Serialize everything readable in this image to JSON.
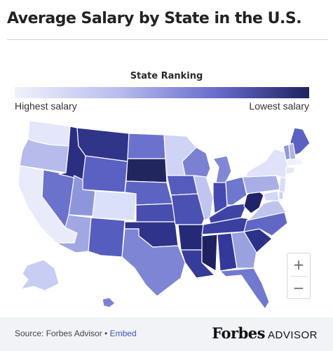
{
  "title": "Average Salary by State in the U.S.",
  "legend": {
    "title": "State Ranking",
    "low_label": "Highest salary",
    "high_label": "Lowest salary",
    "colors": [
      "#f0f1fc",
      "#b9bdee",
      "#6468c9",
      "#1f225e"
    ]
  },
  "map": {
    "states": [
      {
        "code": "WA",
        "rank": 2,
        "color": "#e4e7fa"
      },
      {
        "code": "OR",
        "rank": 14,
        "color": "#b6bbec"
      },
      {
        "code": "CA",
        "rank": 3,
        "color": "#e9ebfb"
      },
      {
        "code": "NV",
        "rank": 31,
        "color": "#6a72cc"
      },
      {
        "code": "ID",
        "rank": 46,
        "color": "#2a2f82"
      },
      {
        "code": "MT",
        "rank": 45,
        "color": "#30358a"
      },
      {
        "code": "WY",
        "rank": 34,
        "color": "#5a61c2"
      },
      {
        "code": "UT",
        "rank": 22,
        "color": "#8e96db"
      },
      {
        "code": "CO",
        "rank": 6,
        "color": "#dadffa"
      },
      {
        "code": "AZ",
        "rank": 19,
        "color": "#a0a7e1"
      },
      {
        "code": "NM",
        "rank": 36,
        "color": "#555dbe"
      },
      {
        "code": "ND",
        "rank": 30,
        "color": "#6b72cd"
      },
      {
        "code": "SD",
        "rank": 48,
        "color": "#22265f"
      },
      {
        "code": "NE",
        "rank": 33,
        "color": "#5d63c3"
      },
      {
        "code": "KS",
        "rank": 37,
        "color": "#474ead"
      },
      {
        "code": "OK",
        "rank": 44,
        "color": "#2f3389"
      },
      {
        "code": "TX",
        "rank": 25,
        "color": "#7d85d4"
      },
      {
        "code": "MN",
        "rank": 9,
        "color": "#cfd3f6"
      },
      {
        "code": "IA",
        "rank": 35,
        "color": "#555cbe"
      },
      {
        "code": "MO",
        "rank": 38,
        "color": "#4a51b3"
      },
      {
        "code": "AR",
        "rank": 47,
        "color": "#252a78"
      },
      {
        "code": "LA",
        "rank": 41,
        "color": "#373c9a"
      },
      {
        "code": "WI",
        "rank": 27,
        "color": "#7a81d2"
      },
      {
        "code": "IL",
        "rank": 12,
        "color": "#c0c5f0"
      },
      {
        "code": "MI",
        "rank": 24,
        "color": "#8088d6"
      },
      {
        "code": "IN",
        "rank": 39,
        "color": "#434ab0"
      },
      {
        "code": "OH",
        "rank": 29,
        "color": "#6f77cf"
      },
      {
        "code": "KY",
        "rank": 40,
        "color": "#3e44a6"
      },
      {
        "code": "TN",
        "rank": 42,
        "color": "#3a40a0"
      },
      {
        "code": "MS",
        "rank": 50,
        "color": "#1f225e"
      },
      {
        "code": "AL",
        "rank": 43,
        "color": "#33389a"
      },
      {
        "code": "GA",
        "rank": 20,
        "color": "#9aa1df"
      },
      {
        "code": "FL",
        "rank": 28,
        "color": "#7078d0"
      },
      {
        "code": "SC",
        "rank": 45,
        "color": "#2c318a"
      },
      {
        "code": "NC",
        "rank": 32,
        "color": "#6067c5"
      },
      {
        "code": "VA",
        "rank": 13,
        "color": "#bfc4ef"
      },
      {
        "code": "WV",
        "rank": 49,
        "color": "#202367"
      },
      {
        "code": "PA",
        "rank": 17,
        "color": "#a9afe6"
      },
      {
        "code": "NY",
        "rank": 5,
        "color": "#dfe2f9"
      },
      {
        "code": "ME",
        "rank": 36,
        "color": "#5a61c1"
      },
      {
        "code": "VT",
        "rank": 23,
        "color": "#9097dc"
      },
      {
        "code": "NH",
        "rank": 16,
        "color": "#aeb4e9"
      },
      {
        "code": "MA",
        "rank": 1,
        "color": "#eef0fc"
      },
      {
        "code": "CT",
        "rank": 4,
        "color": "#e5e8fa"
      },
      {
        "code": "NJ",
        "rank": 7,
        "color": "#d8dcf8"
      },
      {
        "code": "MD",
        "rank": 8,
        "color": "#d3d7f7"
      },
      {
        "code": "DE",
        "rank": 10,
        "color": "#cdd1f5"
      },
      {
        "code": "AK",
        "rank": 11,
        "color": "#c8cdf3"
      },
      {
        "code": "HI",
        "rank": 26,
        "color": "#7c83d3"
      }
    ],
    "zoom_in_label": "+",
    "zoom_out_label": "−"
  },
  "footer": {
    "source_text": "Source: Forbes Advisor •",
    "embed_label": "Embed",
    "brand_name": "Forbes",
    "brand_sub": "ADVISOR"
  }
}
